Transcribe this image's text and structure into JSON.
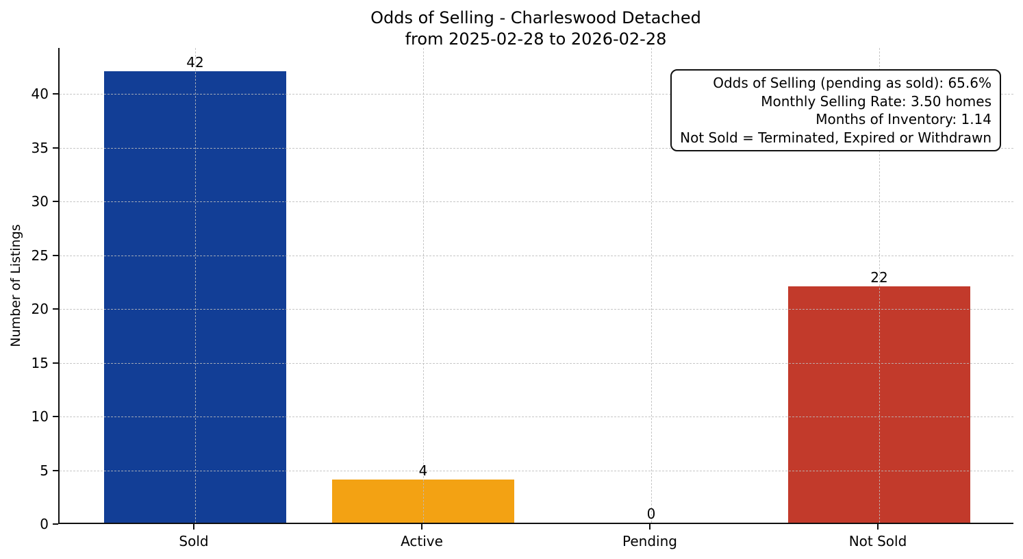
{
  "title": {
    "line1": "Odds of Selling - Charleswood Detached",
    "line2": "from 2025-02-28 to 2026-02-28"
  },
  "chart_data": {
    "type": "bar",
    "categories": [
      "Sold",
      "Active",
      "Pending",
      "Not Sold"
    ],
    "values": [
      42,
      4,
      0,
      22
    ],
    "bar_colors": [
      "#123e96",
      "#f3a213",
      null,
      "#c23a2b"
    ],
    "title": "Odds of Selling - Charleswood Detached\nfrom 2025-02-28 to 2026-02-28",
    "xlabel": "",
    "ylabel": "Number of Listings",
    "yticks": [
      0,
      5,
      10,
      15,
      20,
      25,
      30,
      35,
      40
    ],
    "ylim": [
      0,
      44.3
    ],
    "grid": "dashed, both axes, drawn over bars",
    "legend": "none",
    "background_color": "#ffffff",
    "spine_color": "#101010"
  },
  "annotation": {
    "lines": [
      "Odds of Selling (pending as sold): 65.6%",
      "Monthly Selling Rate: 3.50 homes",
      "Months of Inventory: 1.14",
      "Not Sold = Terminated, Expired or Withdrawn"
    ]
  }
}
